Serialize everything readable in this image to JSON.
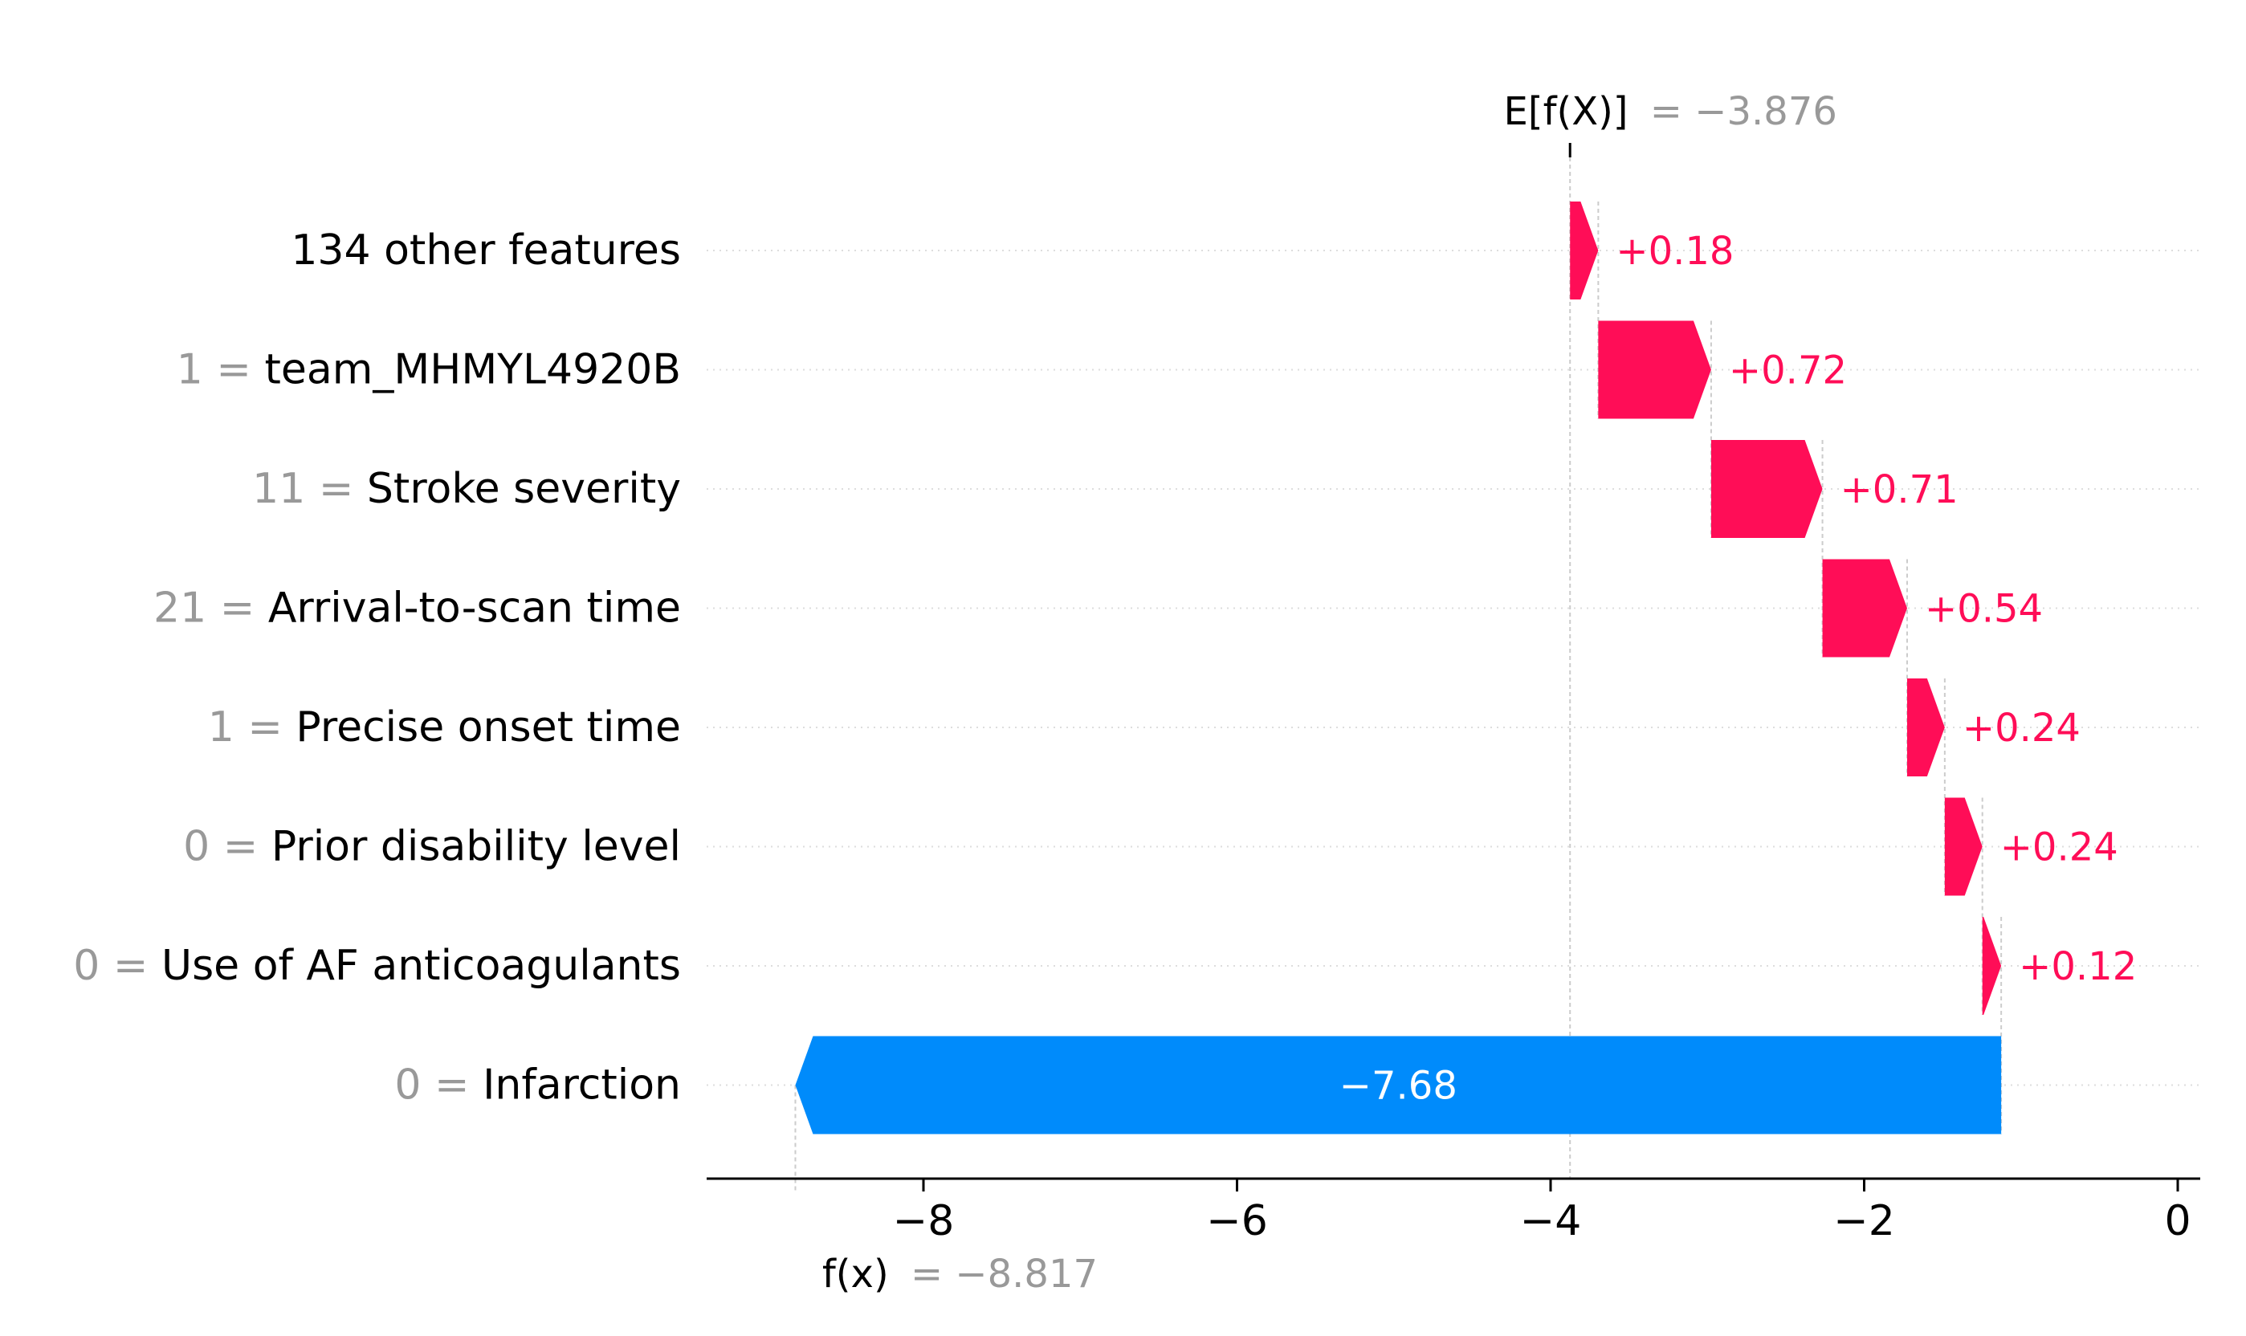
{
  "chart_data": {
    "type": "bar",
    "subtype": "waterfall",
    "title": "",
    "xlabel": "",
    "ylabel": "",
    "xlim": [
      -8.9,
      0.15
    ],
    "x_ticks": [
      -8,
      -6,
      -4,
      -2,
      0
    ],
    "x_tick_labels": [
      "−8",
      "−6",
      "−4",
      "−2",
      "0"
    ],
    "base_value": -3.876,
    "base_label": "E[f(X)]",
    "base_value_text": "= −3.876",
    "output_value": -8.817,
    "output_label": "f(x)",
    "output_value_text": "= −8.817",
    "features": [
      {
        "value_text": "",
        "name": "134 other features",
        "shap": 0.18,
        "label": "+0.18"
      },
      {
        "value_text": "1 =",
        "name": "team_MHMYL4920B",
        "shap": 0.72,
        "label": "+0.72"
      },
      {
        "value_text": "11 =",
        "name": "Stroke severity",
        "shap": 0.71,
        "label": "+0.71"
      },
      {
        "value_text": "21 =",
        "name": "Arrival-to-scan time",
        "shap": 0.54,
        "label": "+0.54"
      },
      {
        "value_text": "1 =",
        "name": "Precise onset time",
        "shap": 0.24,
        "label": "+0.24"
      },
      {
        "value_text": "0 =",
        "name": "Prior disability level",
        "shap": 0.24,
        "label": "+0.24"
      },
      {
        "value_text": "0 =",
        "name": "Use of AF anticoagulants",
        "shap": 0.12,
        "label": "+0.12"
      },
      {
        "value_text": "0 =",
        "name": "Infarction",
        "shap": -7.68,
        "label": "−7.68"
      }
    ],
    "colors": {
      "positive": "#ff0d57",
      "negative": "#008bfb",
      "muted_text": "#999999",
      "text": "#000000",
      "grid": "#cccccc"
    }
  }
}
